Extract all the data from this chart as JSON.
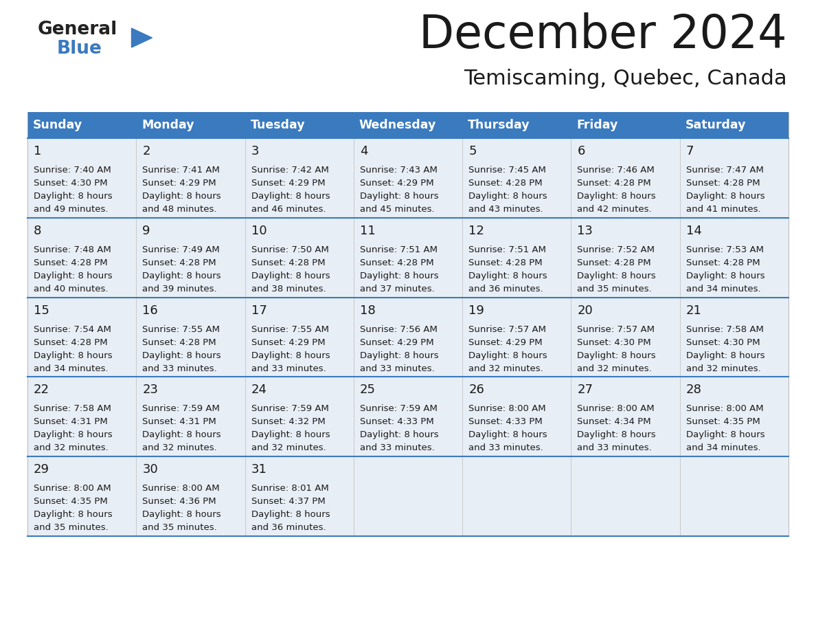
{
  "title": "December 2024",
  "subtitle": "Temiscaming, Quebec, Canada",
  "header_color": "#3a7abf",
  "header_text_color": "#ffffff",
  "day_names": [
    "Sunday",
    "Monday",
    "Tuesday",
    "Wednesday",
    "Thursday",
    "Friday",
    "Saturday"
  ],
  "bg_color": "#ffffff",
  "cell_bg": "#e8eef5",
  "row_line_color": "#3a7abf",
  "text_color": "#1a1a1a",
  "days": [
    {
      "day": 1,
      "col": 0,
      "row": 0,
      "sunrise": "7:40 AM",
      "sunset": "4:30 PM",
      "minutes": "49 minutes."
    },
    {
      "day": 2,
      "col": 1,
      "row": 0,
      "sunrise": "7:41 AM",
      "sunset": "4:29 PM",
      "minutes": "48 minutes."
    },
    {
      "day": 3,
      "col": 2,
      "row": 0,
      "sunrise": "7:42 AM",
      "sunset": "4:29 PM",
      "minutes": "46 minutes."
    },
    {
      "day": 4,
      "col": 3,
      "row": 0,
      "sunrise": "7:43 AM",
      "sunset": "4:29 PM",
      "minutes": "45 minutes."
    },
    {
      "day": 5,
      "col": 4,
      "row": 0,
      "sunrise": "7:45 AM",
      "sunset": "4:28 PM",
      "minutes": "43 minutes."
    },
    {
      "day": 6,
      "col": 5,
      "row": 0,
      "sunrise": "7:46 AM",
      "sunset": "4:28 PM",
      "minutes": "42 minutes."
    },
    {
      "day": 7,
      "col": 6,
      "row": 0,
      "sunrise": "7:47 AM",
      "sunset": "4:28 PM",
      "minutes": "41 minutes."
    },
    {
      "day": 8,
      "col": 0,
      "row": 1,
      "sunrise": "7:48 AM",
      "sunset": "4:28 PM",
      "minutes": "40 minutes."
    },
    {
      "day": 9,
      "col": 1,
      "row": 1,
      "sunrise": "7:49 AM",
      "sunset": "4:28 PM",
      "minutes": "39 minutes."
    },
    {
      "day": 10,
      "col": 2,
      "row": 1,
      "sunrise": "7:50 AM",
      "sunset": "4:28 PM",
      "minutes": "38 minutes."
    },
    {
      "day": 11,
      "col": 3,
      "row": 1,
      "sunrise": "7:51 AM",
      "sunset": "4:28 PM",
      "minutes": "37 minutes."
    },
    {
      "day": 12,
      "col": 4,
      "row": 1,
      "sunrise": "7:51 AM",
      "sunset": "4:28 PM",
      "minutes": "36 minutes."
    },
    {
      "day": 13,
      "col": 5,
      "row": 1,
      "sunrise": "7:52 AM",
      "sunset": "4:28 PM",
      "minutes": "35 minutes."
    },
    {
      "day": 14,
      "col": 6,
      "row": 1,
      "sunrise": "7:53 AM",
      "sunset": "4:28 PM",
      "minutes": "34 minutes."
    },
    {
      "day": 15,
      "col": 0,
      "row": 2,
      "sunrise": "7:54 AM",
      "sunset": "4:28 PM",
      "minutes": "34 minutes."
    },
    {
      "day": 16,
      "col": 1,
      "row": 2,
      "sunrise": "7:55 AM",
      "sunset": "4:28 PM",
      "minutes": "33 minutes."
    },
    {
      "day": 17,
      "col": 2,
      "row": 2,
      "sunrise": "7:55 AM",
      "sunset": "4:29 PM",
      "minutes": "33 minutes."
    },
    {
      "day": 18,
      "col": 3,
      "row": 2,
      "sunrise": "7:56 AM",
      "sunset": "4:29 PM",
      "minutes": "33 minutes."
    },
    {
      "day": 19,
      "col": 4,
      "row": 2,
      "sunrise": "7:57 AM",
      "sunset": "4:29 PM",
      "minutes": "32 minutes."
    },
    {
      "day": 20,
      "col": 5,
      "row": 2,
      "sunrise": "7:57 AM",
      "sunset": "4:30 PM",
      "minutes": "32 minutes."
    },
    {
      "day": 21,
      "col": 6,
      "row": 2,
      "sunrise": "7:58 AM",
      "sunset": "4:30 PM",
      "minutes": "32 minutes."
    },
    {
      "day": 22,
      "col": 0,
      "row": 3,
      "sunrise": "7:58 AM",
      "sunset": "4:31 PM",
      "minutes": "32 minutes."
    },
    {
      "day": 23,
      "col": 1,
      "row": 3,
      "sunrise": "7:59 AM",
      "sunset": "4:31 PM",
      "minutes": "32 minutes."
    },
    {
      "day": 24,
      "col": 2,
      "row": 3,
      "sunrise": "7:59 AM",
      "sunset": "4:32 PM",
      "minutes": "32 minutes."
    },
    {
      "day": 25,
      "col": 3,
      "row": 3,
      "sunrise": "7:59 AM",
      "sunset": "4:33 PM",
      "minutes": "33 minutes."
    },
    {
      "day": 26,
      "col": 4,
      "row": 3,
      "sunrise": "8:00 AM",
      "sunset": "4:33 PM",
      "minutes": "33 minutes."
    },
    {
      "day": 27,
      "col": 5,
      "row": 3,
      "sunrise": "8:00 AM",
      "sunset": "4:34 PM",
      "minutes": "33 minutes."
    },
    {
      "day": 28,
      "col": 6,
      "row": 3,
      "sunrise": "8:00 AM",
      "sunset": "4:35 PM",
      "minutes": "34 minutes."
    },
    {
      "day": 29,
      "col": 0,
      "row": 4,
      "sunrise": "8:00 AM",
      "sunset": "4:35 PM",
      "minutes": "35 minutes."
    },
    {
      "day": 30,
      "col": 1,
      "row": 4,
      "sunrise": "8:00 AM",
      "sunset": "4:36 PM",
      "minutes": "35 minutes."
    },
    {
      "day": 31,
      "col": 2,
      "row": 4,
      "sunrise": "8:01 AM",
      "sunset": "4:37 PM",
      "minutes": "36 minutes."
    }
  ]
}
